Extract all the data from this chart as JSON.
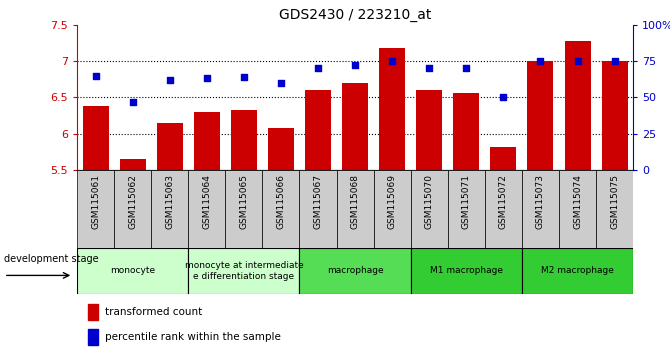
{
  "title": "GDS2430 / 223210_at",
  "samples": [
    "GSM115061",
    "GSM115062",
    "GSM115063",
    "GSM115064",
    "GSM115065",
    "GSM115066",
    "GSM115067",
    "GSM115068",
    "GSM115069",
    "GSM115070",
    "GSM115071",
    "GSM115072",
    "GSM115073",
    "GSM115074",
    "GSM115075"
  ],
  "transformed_count": [
    6.38,
    5.65,
    6.15,
    6.3,
    6.32,
    6.08,
    6.6,
    6.7,
    7.18,
    6.6,
    6.56,
    5.82,
    7.0,
    7.28,
    7.0
  ],
  "percentile_rank": [
    65,
    47,
    62,
    63,
    64,
    60,
    70,
    72,
    75,
    70,
    70,
    50,
    75,
    75,
    75
  ],
  "ylim": [
    5.5,
    7.5
  ],
  "yticks": [
    5.5,
    6.0,
    6.5,
    7.0,
    7.5
  ],
  "ytick_labels_left": [
    "5.5",
    "6",
    "6.5",
    "7",
    "7.5"
  ],
  "right_yticks": [
    0,
    25,
    50,
    75,
    100
  ],
  "right_ytick_labels": [
    "0",
    "25",
    "50",
    "75",
    "100%"
  ],
  "bar_color": "#CC0000",
  "dot_color": "#0000CC",
  "bar_bottom": 5.5,
  "hlines": [
    6.0,
    6.5,
    7.0
  ],
  "groups": [
    {
      "label": "monocyte",
      "start": 0,
      "end": 3,
      "color": "#ccffcc"
    },
    {
      "label": "monocyte at intermediate\ne differentiation stage",
      "start": 3,
      "end": 6,
      "color": "#ccffcc"
    },
    {
      "label": "macrophage",
      "start": 6,
      "end": 9,
      "color": "#55dd55"
    },
    {
      "label": "M1 macrophage",
      "start": 9,
      "end": 12,
      "color": "#33cc33"
    },
    {
      "label": "M2 macrophage",
      "start": 12,
      "end": 15,
      "color": "#33cc33"
    }
  ],
  "legend_red": "transformed count",
  "legend_blue": "percentile rank within the sample",
  "dev_stage_label": "development stage",
  "tick_bg_color": "#cccccc",
  "plot_bg_color": "#ffffff"
}
